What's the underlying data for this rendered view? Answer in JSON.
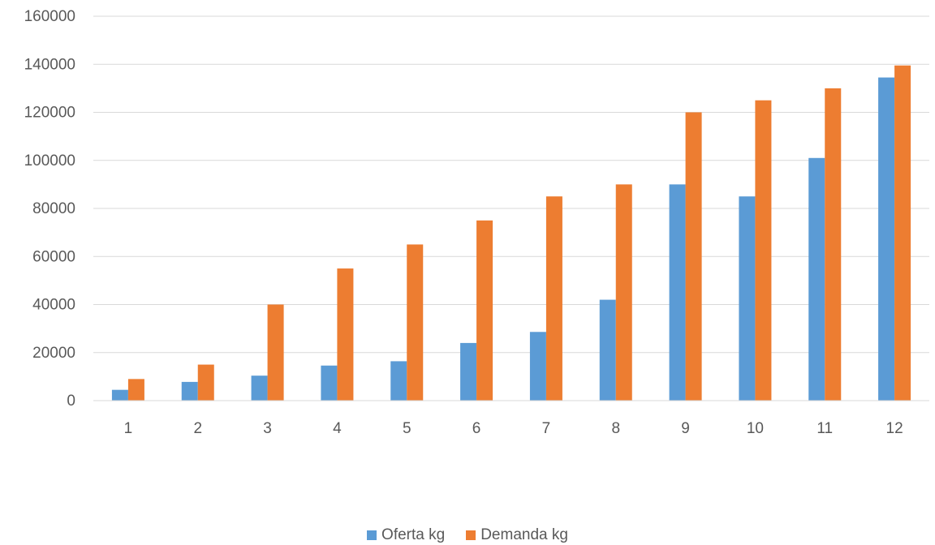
{
  "chart_data": {
    "type": "bar",
    "title": "",
    "xlabel": "",
    "ylabel": "",
    "categories": [
      "1",
      "2",
      "3",
      "4",
      "5",
      "6",
      "7",
      "8",
      "9",
      "10",
      "11",
      "12"
    ],
    "series": [
      {
        "name": "Oferta kg",
        "color": "#5B9BD5",
        "values": [
          4500,
          7800,
          10400,
          14600,
          16400,
          24000,
          28600,
          42000,
          90000,
          85000,
          101000,
          134500
        ]
      },
      {
        "name": "Demanda kg",
        "color": "#ED7D31",
        "values": [
          9000,
          15000,
          40000,
          55000,
          65000,
          75000,
          85000,
          90000,
          120000,
          125000,
          130000,
          139500
        ]
      }
    ],
    "ylim": [
      0,
      160000
    ],
    "yticks": [
      "0",
      "20000",
      "40000",
      "60000",
      "80000",
      "100000",
      "120000",
      "140000",
      "160000"
    ],
    "grid": true,
    "legend": "bottom"
  }
}
